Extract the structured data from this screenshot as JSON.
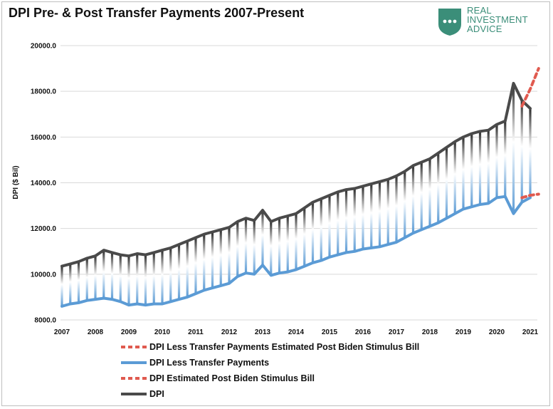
{
  "title": "DPI Pre- & Post Transfer Payments 2007-Present",
  "logo": {
    "icon": "shield-dots-icon",
    "lines": [
      "REAL",
      "INVESTMENT",
      "ADVICE"
    ],
    "color": "#3b8e79"
  },
  "chart_data": {
    "type": "line",
    "title": "DPI Pre- & Post Transfer Payments 2007-Present",
    "xlabel": "",
    "ylabel": "DPI ($ Bil)",
    "ylim": [
      8000,
      20000
    ],
    "yticks": [
      8000,
      10000,
      12000,
      14000,
      16000,
      18000,
      20000
    ],
    "ytick_labels": [
      "8000.0",
      "10000.0",
      "12000.0",
      "14000.0",
      "16000.0",
      "18000.0",
      "20000.0"
    ],
    "xticks": [
      "2007",
      "2008",
      "2009",
      "2010",
      "2011",
      "2012",
      "2013",
      "2014",
      "2015",
      "2016",
      "2017",
      "2018",
      "2019",
      "2020",
      "2021"
    ],
    "grid": true,
    "legend_position": "bottom",
    "quarters": [
      "2007 Q1",
      "2007 Q2",
      "2007 Q3",
      "2007 Q4",
      "2008 Q1",
      "2008 Q2",
      "2008 Q3",
      "2008 Q4",
      "2009 Q1",
      "2009 Q2",
      "2009 Q3",
      "2009 Q4",
      "2010 Q1",
      "2010 Q2",
      "2010 Q3",
      "2010 Q4",
      "2011 Q1",
      "2011 Q2",
      "2011 Q3",
      "2011 Q4",
      "2012 Q1",
      "2012 Q2",
      "2012 Q3",
      "2012 Q4",
      "2013 Q1",
      "2013 Q2",
      "2013 Q3",
      "2013 Q4",
      "2014 Q1",
      "2014 Q2",
      "2014 Q3",
      "2014 Q4",
      "2015 Q1",
      "2015 Q2",
      "2015 Q3",
      "2015 Q4",
      "2016 Q1",
      "2016 Q2",
      "2016 Q3",
      "2016 Q4",
      "2017 Q1",
      "2017 Q2",
      "2017 Q3",
      "2017 Q4",
      "2018 Q1",
      "2018 Q2",
      "2018 Q3",
      "2018 Q4",
      "2019 Q1",
      "2019 Q2",
      "2019 Q3",
      "2019 Q4",
      "2020 Q1",
      "2020 Q2",
      "2020 Q3",
      "2020 Q4",
      "2021 Q1",
      "2021 Q2"
    ],
    "series": [
      {
        "name": "DPI Less Transfer Payments Estimated Post Biden Stimulus Bill",
        "color": "#e05a4f",
        "style": "dashed",
        "x_index_start": 55,
        "values": [
          13350,
          13450,
          13500
        ]
      },
      {
        "name": "DPI Less Transfer Payments",
        "color": "#5b9bd5",
        "style": "solid",
        "x_index_start": 0,
        "values": [
          8600,
          8700,
          8750,
          8850,
          8900,
          8950,
          8900,
          8800,
          8650,
          8700,
          8650,
          8700,
          8700,
          8800,
          8900,
          9000,
          9150,
          9300,
          9400,
          9500,
          9600,
          9900,
          10050,
          10000,
          10400,
          9950,
          10050,
          10100,
          10200,
          10350,
          10500,
          10600,
          10750,
          10850,
          10950,
          11000,
          11100,
          11150,
          11200,
          11300,
          11400,
          11600,
          11800,
          11950,
          12100,
          12250,
          12450,
          12650,
          12850,
          12950,
          13050,
          13100,
          13350,
          13400,
          12650,
          13150,
          13350
        ]
      },
      {
        "name": "DPI Estimated Post Biden Stimulus Bill",
        "color": "#e05a4f",
        "style": "dashed",
        "x_index_start": 55,
        "values": [
          17350,
          18100,
          19000
        ]
      },
      {
        "name": "DPI",
        "color": "#4a4a4a",
        "style": "solid",
        "x_index_start": 0,
        "values": [
          10350,
          10450,
          10550,
          10700,
          10800,
          11050,
          10950,
          10850,
          10800,
          10900,
          10850,
          10950,
          11050,
          11150,
          11300,
          11450,
          11600,
          11750,
          11850,
          11950,
          12050,
          12300,
          12450,
          12350,
          12800,
          12300,
          12450,
          12550,
          12650,
          12900,
          13150,
          13300,
          13450,
          13600,
          13700,
          13750,
          13850,
          13950,
          14050,
          14150,
          14300,
          14500,
          14750,
          14900,
          15050,
          15300,
          15550,
          15800,
          16000,
          16150,
          16250,
          16300,
          16550,
          16700,
          18350,
          17600,
          17250
        ]
      }
    ]
  }
}
